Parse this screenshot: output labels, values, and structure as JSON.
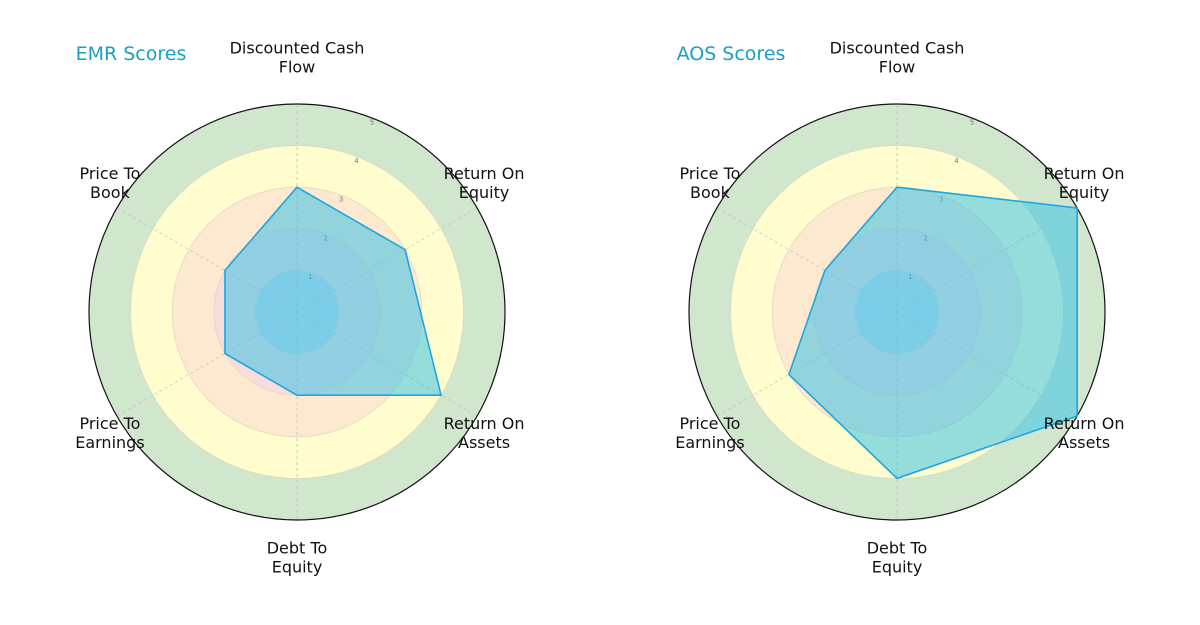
{
  "chart_data": [
    {
      "type": "radar",
      "title": "EMR Scores",
      "axes": [
        "Discounted Cash Flow",
        "Return On Equity",
        "Return On Assets",
        "Debt To Equity",
        "Price To Earnings",
        "Price To Book"
      ],
      "axis_labels": [
        [
          "Discounted Cash",
          "Flow"
        ],
        [
          "Return On",
          "Equity"
        ],
        [
          "Return On",
          "Assets"
        ],
        [
          "Debt To",
          "Equity"
        ],
        [
          "Price To",
          "Earnings"
        ],
        [
          "Price To",
          "Book"
        ]
      ],
      "values": [
        3,
        3,
        4,
        2,
        2,
        2
      ],
      "rlim": [
        0,
        5
      ],
      "r_ticks": [
        "1",
        "2",
        "3",
        "4",
        "5"
      ]
    },
    {
      "type": "radar",
      "title": "AOS Scores",
      "axes": [
        "Discounted Cash Flow",
        "Return On Equity",
        "Return On Assets",
        "Debt To Equity",
        "Price To Earnings",
        "Price To Book"
      ],
      "axis_labels": [
        [
          "Discounted Cash",
          "Flow"
        ],
        [
          "Return On",
          "Equity"
        ],
        [
          "Return On",
          "Assets"
        ],
        [
          "Debt To",
          "Equity"
        ],
        [
          "Price To",
          "Earnings"
        ],
        [
          "Price To",
          "Book"
        ]
      ],
      "values": [
        3,
        5,
        5,
        4,
        3,
        2
      ],
      "rlim": [
        0,
        5
      ],
      "r_ticks": [
        "1",
        "2",
        "3",
        "4",
        "5"
      ]
    }
  ],
  "colors": {
    "title": "#1a9fc4",
    "band_colors": [
      "#c9d9e6",
      "#f9dcdc",
      "#fde9cf",
      "#fffccd",
      "#d0e6cd"
    ],
    "fill": "#3cc3e8",
    "stroke": "#1ea6e0"
  }
}
